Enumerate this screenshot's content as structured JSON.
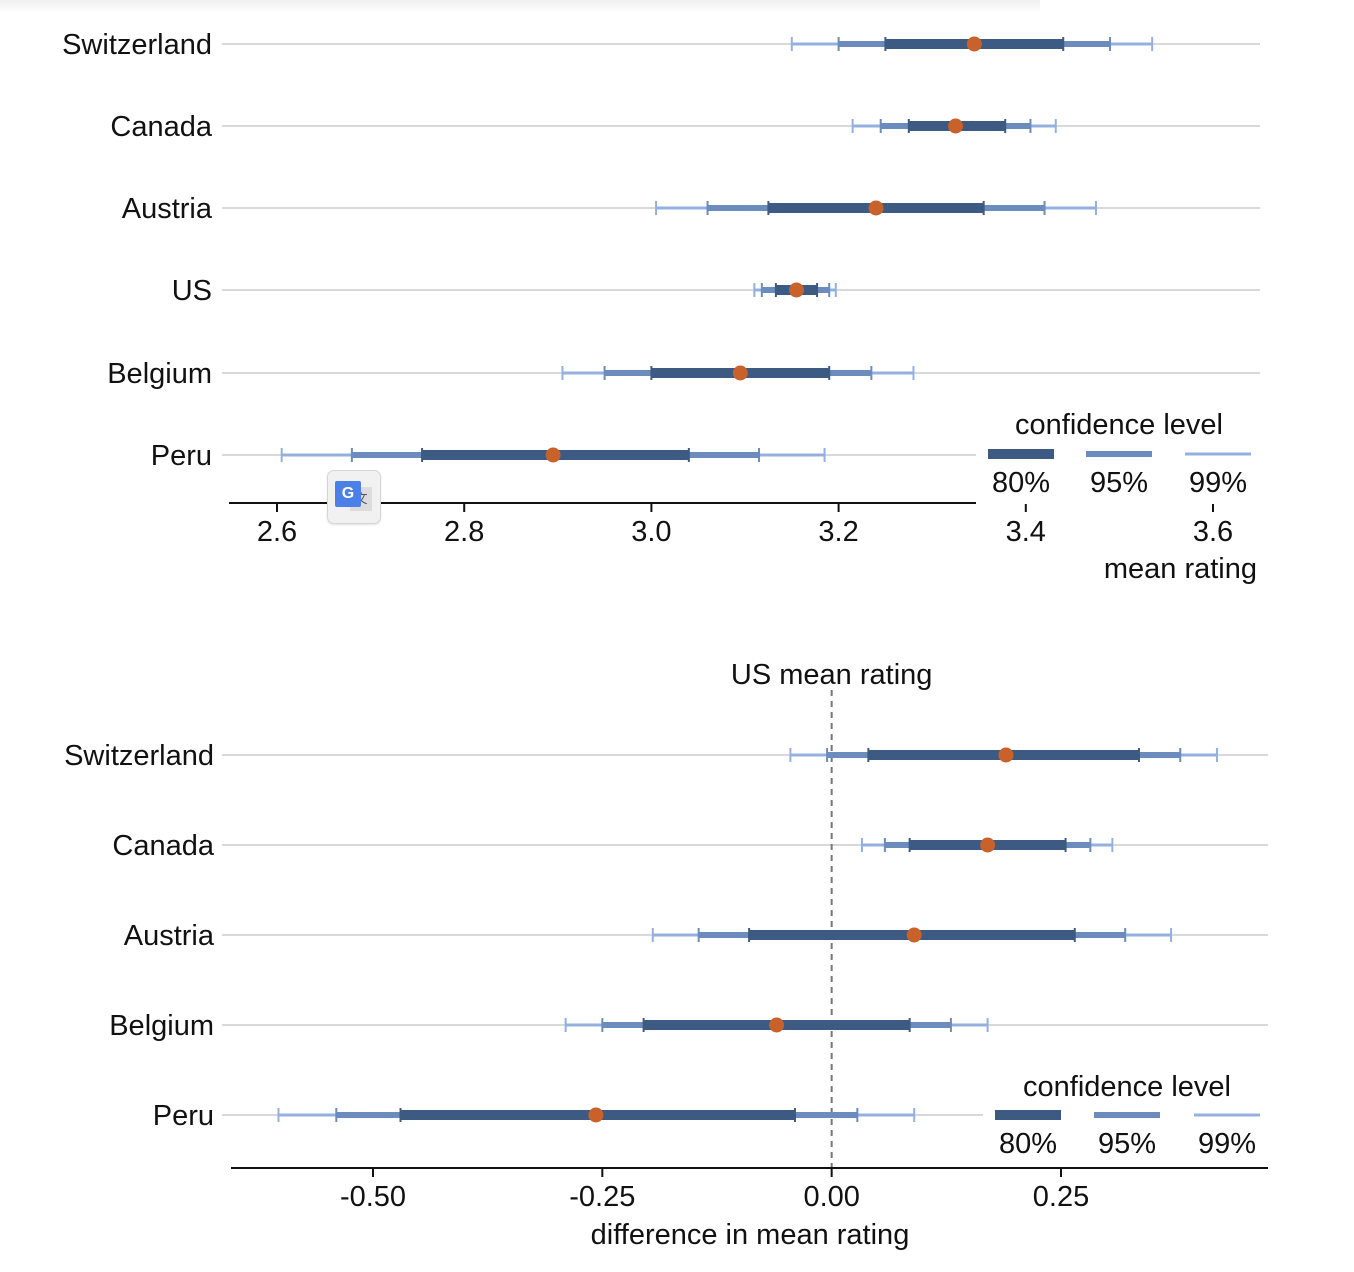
{
  "colors": {
    "ci80": "#3d5a82",
    "ci95": "#6b8cbc",
    "ci99": "#94b0e0",
    "point": "#c8622a",
    "gridline": "#d9d9d9",
    "axis": "#111111",
    "refline": "#777777"
  },
  "translate_widget": {
    "icon": "google-translate-icon",
    "glyph": "G",
    "glyph2": "文"
  },
  "chart_data": [
    {
      "type": "errorbar",
      "title": "",
      "xlabel": "mean rating",
      "ylabel": "",
      "xlim": [
        2.55,
        3.66
      ],
      "x_ticks": [
        2.6,
        2.8,
        3.0,
        3.2,
        3.4,
        3.6
      ],
      "x_tick_labels": [
        "2.6",
        "2.8",
        "3.0",
        "3.2",
        "3.4",
        "3.6"
      ],
      "legend": {
        "title": "confidence level",
        "labels": [
          "80%",
          "95%",
          "99%"
        ],
        "position": "bottom-right"
      },
      "categories": [
        "Switzerland",
        "Canada",
        "Austria",
        "US",
        "Belgium",
        "Peru"
      ],
      "series": [
        {
          "name": "Switzerland",
          "mean": 3.345,
          "ci80": [
            3.25,
            3.44
          ],
          "ci95": [
            3.2,
            3.49
          ],
          "ci99": [
            3.15,
            3.535
          ]
        },
        {
          "name": "Canada",
          "mean": 3.325,
          "ci80": [
            3.275,
            3.378
          ],
          "ci95": [
            3.245,
            3.405
          ],
          "ci99": [
            3.215,
            3.432
          ]
        },
        {
          "name": "Austria",
          "mean": 3.24,
          "ci80": [
            3.125,
            3.355
          ],
          "ci95": [
            3.06,
            3.42
          ],
          "ci99": [
            3.005,
            3.475
          ]
        },
        {
          "name": "US",
          "mean": 3.155,
          "ci80": [
            3.133,
            3.177
          ],
          "ci95": [
            3.118,
            3.19
          ],
          "ci99": [
            3.11,
            3.197
          ]
        },
        {
          "name": "Belgium",
          "mean": 3.095,
          "ci80": [
            3.0,
            3.19
          ],
          "ci95": [
            2.95,
            3.235
          ],
          "ci99": [
            2.905,
            3.28
          ]
        },
        {
          "name": "Peru",
          "mean": 2.895,
          "ci80": [
            2.755,
            3.04
          ],
          "ci95": [
            2.68,
            3.115
          ],
          "ci99": [
            2.605,
            3.185
          ]
        }
      ]
    },
    {
      "type": "errorbar",
      "title": "",
      "xlabel": "difference in mean rating",
      "ylabel": "",
      "xlim": [
        -0.655,
        0.475
      ],
      "x_ticks": [
        -0.5,
        -0.25,
        0.0,
        0.25
      ],
      "x_tick_labels": [
        "-0.50",
        "-0.25",
        "0.00",
        "0.25"
      ],
      "reference_line": {
        "x": 0.0,
        "label": "US mean rating"
      },
      "legend": {
        "title": "confidence level",
        "labels": [
          "80%",
          "95%",
          "99%"
        ],
        "position": "bottom-right"
      },
      "categories": [
        "Switzerland",
        "Canada",
        "Austria",
        "Belgium",
        "Peru"
      ],
      "series": [
        {
          "name": "Switzerland",
          "mean": 0.19,
          "ci80": [
            0.04,
            0.335
          ],
          "ci95": [
            -0.005,
            0.38
          ],
          "ci99": [
            -0.045,
            0.42
          ]
        },
        {
          "name": "Canada",
          "mean": 0.17,
          "ci80": [
            0.085,
            0.255
          ],
          "ci95": [
            0.058,
            0.282
          ],
          "ci99": [
            0.033,
            0.306
          ]
        },
        {
          "name": "Austria",
          "mean": 0.09,
          "ci80": [
            -0.09,
            0.265
          ],
          "ci95": [
            -0.145,
            0.32
          ],
          "ci99": [
            -0.195,
            0.37
          ]
        },
        {
          "name": "Belgium",
          "mean": -0.06,
          "ci80": [
            -0.205,
            0.085
          ],
          "ci95": [
            -0.25,
            0.13
          ],
          "ci99": [
            -0.29,
            0.17
          ]
        },
        {
          "name": "Peru",
          "mean": -0.257,
          "ci80": [
            -0.47,
            -0.04
          ],
          "ci95": [
            -0.54,
            0.028
          ],
          "ci99": [
            -0.603,
            0.09
          ]
        }
      ]
    }
  ]
}
